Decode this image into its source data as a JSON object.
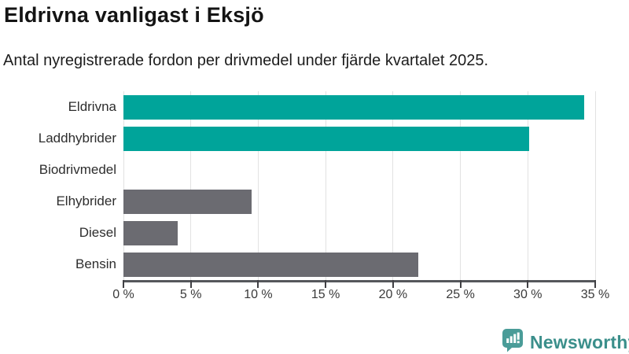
{
  "header": {
    "title": "Eldrivna vanligast i Eksjö",
    "subtitle": "Antal nyregistrerade fordon per drivmedel under fjärde kvartalet 2025."
  },
  "chart_data": {
    "type": "bar",
    "orientation": "horizontal",
    "title": "Eldrivna vanligast i Eksjö",
    "subtitle": "Antal nyregistrerade fordon per drivmedel under fjärde kvartalet 2025.",
    "categories": [
      "Eldrivna",
      "Laddhybrider",
      "Biodrivmedel",
      "Elhybrider",
      "Diesel",
      "Bensin"
    ],
    "values": [
      34.2,
      30.1,
      0,
      9.5,
      4.0,
      21.9
    ],
    "unit": "%",
    "xlim": [
      0,
      35
    ],
    "x_ticks": [
      0,
      5,
      10,
      15,
      20,
      25,
      30,
      35
    ],
    "x_tick_labels": [
      "0 %",
      "5 %",
      "10 %",
      "15 %",
      "20 %",
      "25 %",
      "30 %",
      "35 %"
    ],
    "bar_colors": [
      "#00a49a",
      "#00a49a",
      "#6b6b71",
      "#6b6b71",
      "#6b6b71",
      "#6b6b71"
    ],
    "highlight_color": "#00a49a",
    "default_color": "#6b6b71",
    "grid": true,
    "legend": false
  },
  "footer": {
    "brand": "Newsworthy",
    "brand_color": "#3b8f8b",
    "icon": "newsworthy-logo-icon",
    "icon_color": "#4a9c98"
  }
}
